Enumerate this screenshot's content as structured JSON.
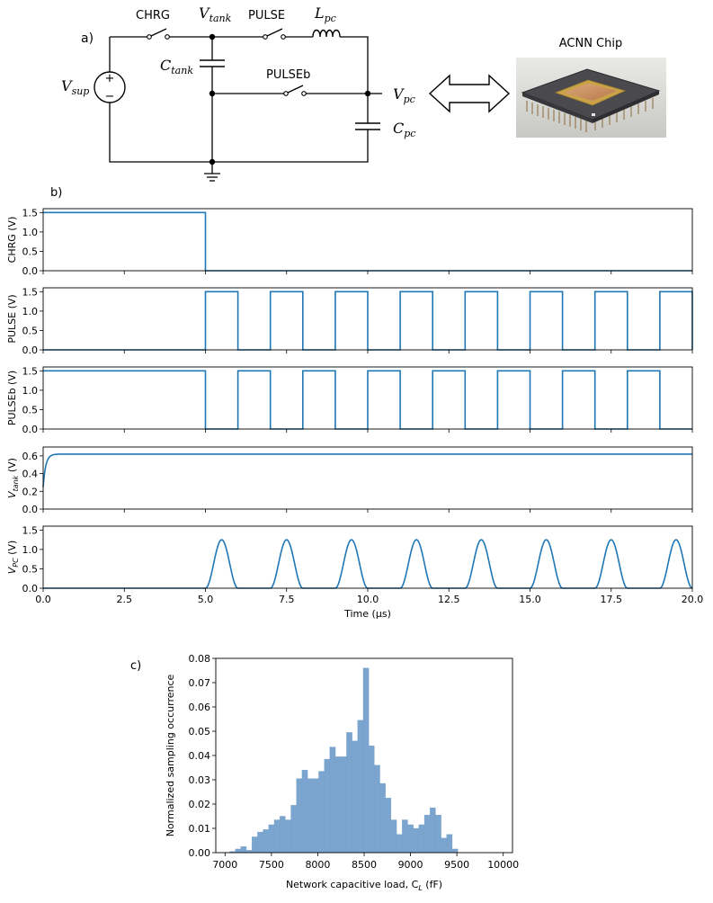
{
  "panel_labels": {
    "a": "a)",
    "b": "b)",
    "c": "c)"
  },
  "circuit": {
    "switch_chrg": "CHRG",
    "node_tank": "V",
    "node_tank_sub": "tank",
    "switch_pulse": "PULSE",
    "inductor": "L",
    "inductor_sub": "pc",
    "cap_tank": "C",
    "cap_tank_sub": "tank",
    "switch_pulseb": "PULSEb",
    "source": "V",
    "source_sub": "sup",
    "node_pc": "V",
    "node_pc_sub": "pc",
    "cap_pc": "C",
    "cap_pc_sub": "pc",
    "plus": "+",
    "minus": "−"
  },
  "chip": {
    "title": "ACNN Chip"
  },
  "colors": {
    "trace": "#1f77b4",
    "hist": "#7ba5cf",
    "hist_edge": "#6e9cc9"
  },
  "chart_data": [
    {
      "type": "line",
      "ylabel": "CHRG (V)",
      "ylim": [
        0,
        1.6
      ],
      "yticks": [
        "0.0",
        "0.5",
        "1.0",
        "1.5"
      ],
      "xlim": [
        0,
        20
      ],
      "x": [
        0,
        5,
        5,
        20
      ],
      "y": [
        1.5,
        1.5,
        0,
        0
      ]
    },
    {
      "type": "line",
      "ylabel": "PULSE (V)",
      "ylim": [
        0,
        1.6
      ],
      "yticks": [
        "0.0",
        "0.5",
        "1.0",
        "1.5"
      ],
      "xlim": [
        0,
        20
      ],
      "description_levels": {
        "low": 0,
        "high": 1.5
      },
      "high_intervals": [
        [
          5,
          6
        ],
        [
          7,
          8
        ],
        [
          9,
          10
        ],
        [
          11,
          12
        ],
        [
          13,
          14
        ],
        [
          15,
          16
        ],
        [
          17,
          18
        ],
        [
          19,
          20
        ]
      ]
    },
    {
      "type": "line",
      "ylabel": "PULSEb (V)",
      "ylim": [
        0,
        1.6
      ],
      "yticks": [
        "0.0",
        "0.5",
        "1.0",
        "1.5"
      ],
      "xlim": [
        0,
        20
      ],
      "high_intervals": [
        [
          0,
          5
        ],
        [
          6,
          7
        ],
        [
          8,
          9
        ],
        [
          10,
          11
        ],
        [
          12,
          13
        ],
        [
          14,
          15
        ],
        [
          16,
          17
        ],
        [
          18,
          19
        ]
      ]
    },
    {
      "type": "line",
      "ylabel": "V",
      "ylabel_sub": "tank",
      "ylabel_unit": " (V)",
      "ylim": [
        0,
        0.7
      ],
      "yticks": [
        "0.0",
        "0.2",
        "0.4",
        "0.6"
      ],
      "xlim": [
        0,
        20
      ],
      "initial": 0.25,
      "final": 0.62,
      "tau_us": 0.08
    },
    {
      "type": "line",
      "ylabel": "V",
      "ylabel_sub": "PC",
      "ylabel_unit": " (V)",
      "ylim": [
        0,
        1.6
      ],
      "yticks": [
        "0.0",
        "0.5",
        "1.0",
        "1.5"
      ],
      "xlim": [
        0,
        20
      ],
      "xticks": [
        "0.0",
        "2.5",
        "5.0",
        "7.5",
        "10.0",
        "12.5",
        "15.0",
        "17.5",
        "20.0"
      ],
      "xlabel": "Time (μs)",
      "peak": 1.25,
      "pulse_starts": [
        5,
        7,
        9,
        11,
        13,
        15,
        17,
        19
      ]
    },
    {
      "type": "bar",
      "xlabel": "Network capacitive load, C",
      "xlabel_sub": "L",
      "xlabel_unit": " (fF)",
      "ylabel": "Normalized sampling occurrence",
      "xlim": [
        6900,
        10100
      ],
      "ylim": [
        0,
        0.08
      ],
      "xticks": [
        "7000",
        "7500",
        "8000",
        "8500",
        "9000",
        "9500",
        "10000"
      ],
      "yticks": [
        "0.00",
        "0.01",
        "0.02",
        "0.03",
        "0.04",
        "0.05",
        "0.06",
        "0.07",
        "0.08"
      ],
      "bin_width": 60,
      "bin_start": 7050,
      "values": [
        0.0005,
        0.0015,
        0.0025,
        0.001,
        0.0065,
        0.0085,
        0.0095,
        0.0115,
        0.0135,
        0.015,
        0.0135,
        0.0195,
        0.0305,
        0.034,
        0.0305,
        0.0305,
        0.0335,
        0.0385,
        0.0435,
        0.0395,
        0.0395,
        0.0495,
        0.046,
        0.0545,
        0.076,
        0.044,
        0.036,
        0.0285,
        0.0225,
        0.0135,
        0.0075,
        0.0135,
        0.0115,
        0.01,
        0.0115,
        0.0155,
        0.0185,
        0.0155,
        0.006,
        0.0075,
        0.0015
      ]
    }
  ]
}
